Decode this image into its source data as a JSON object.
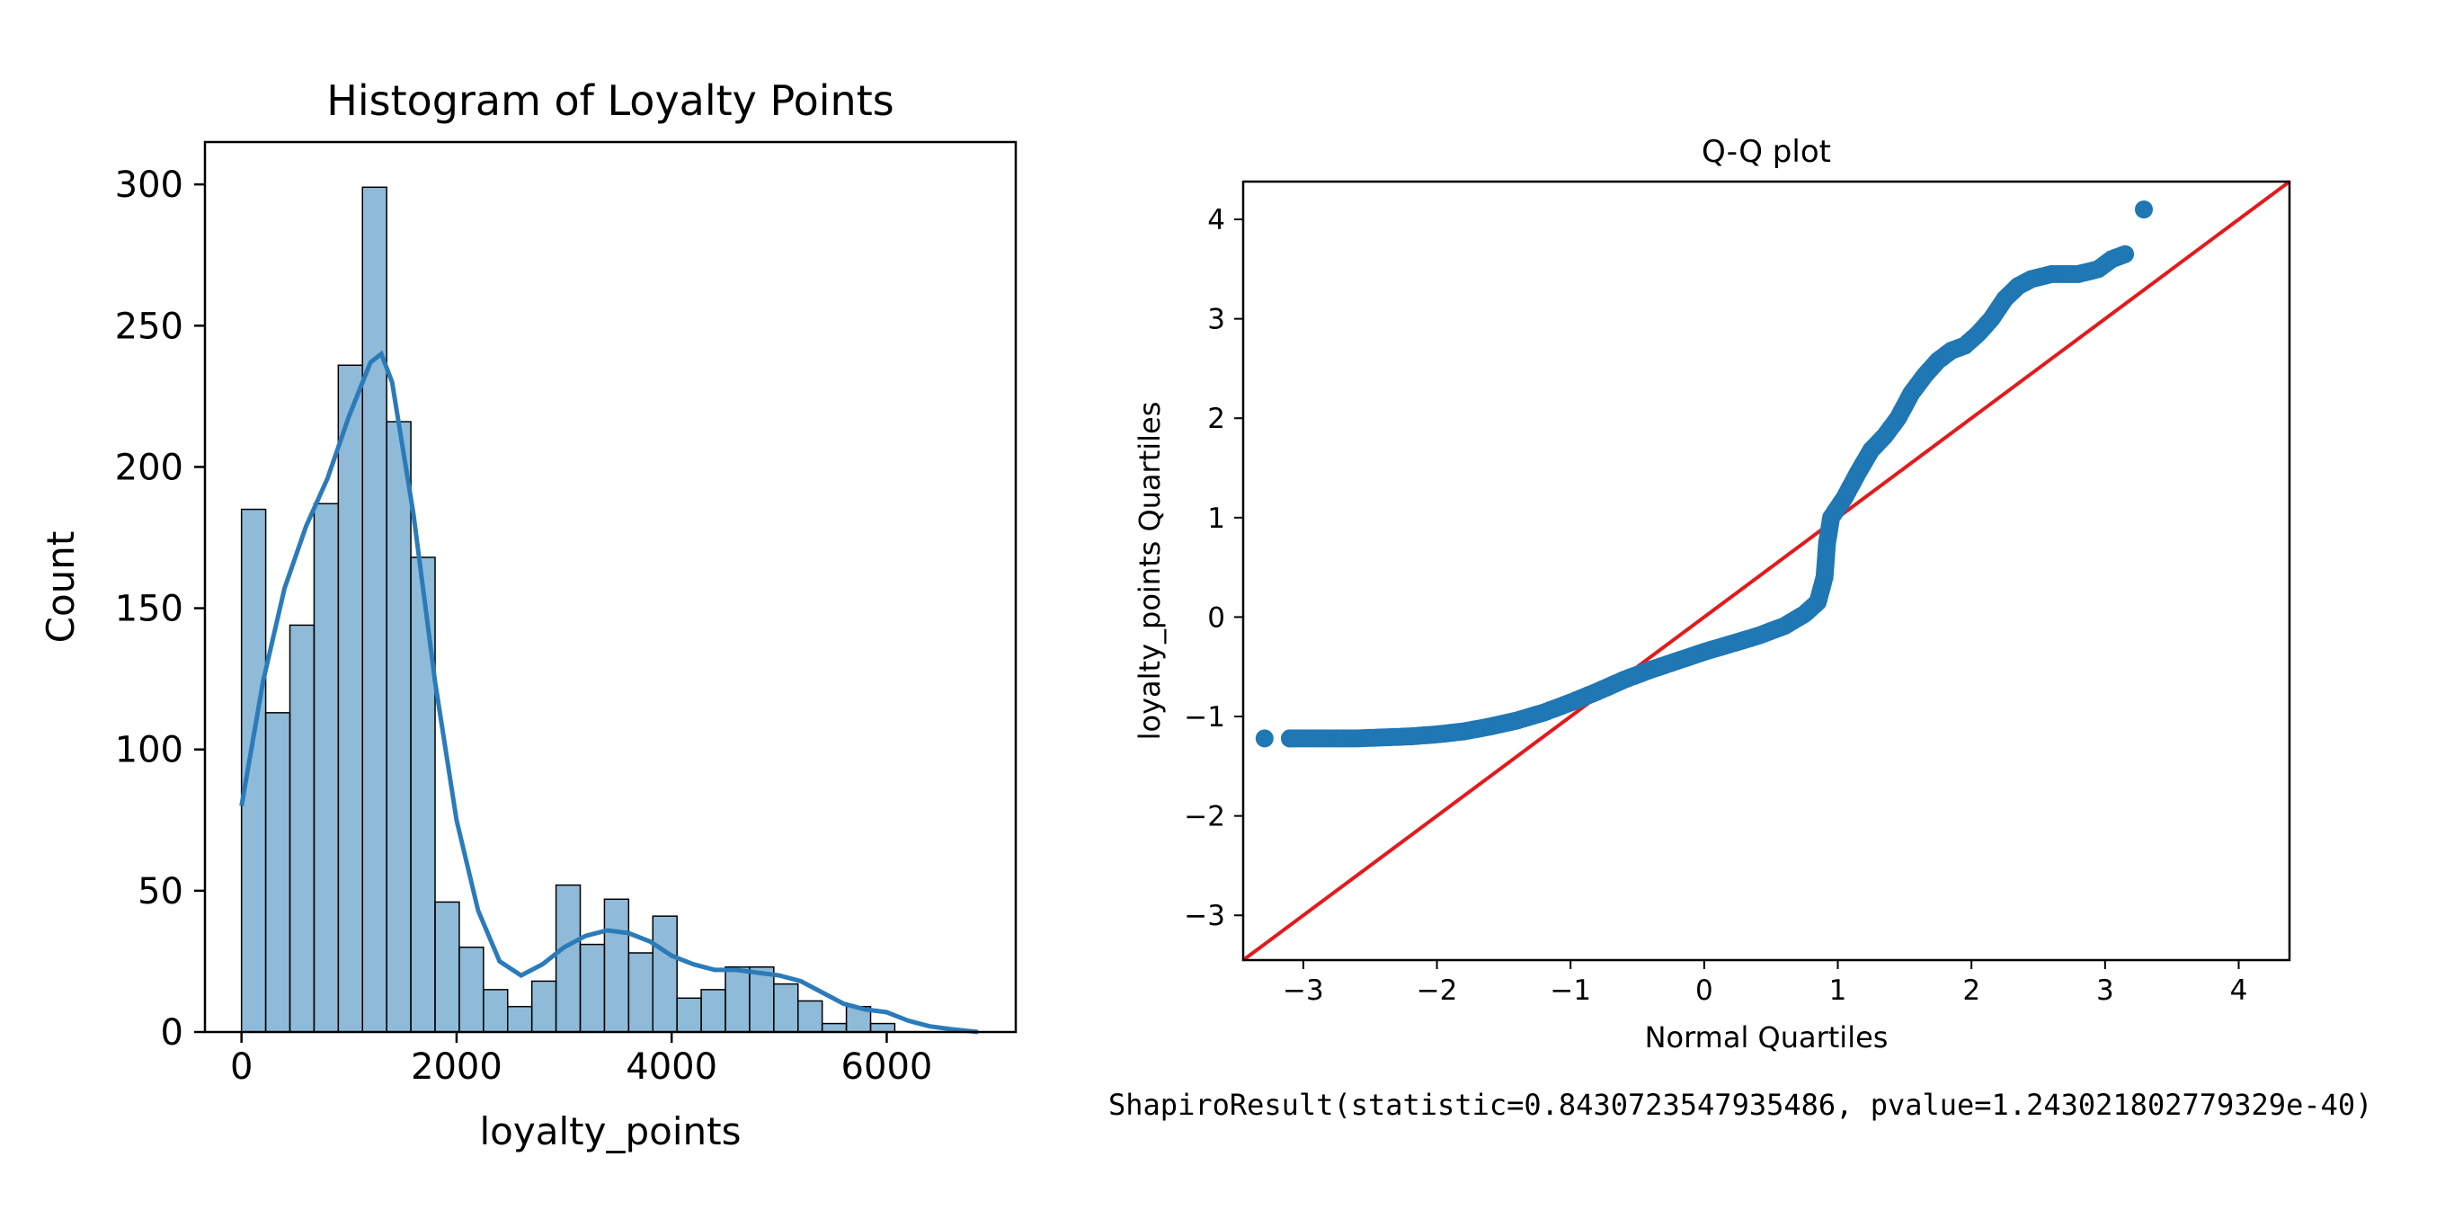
{
  "charts": {
    "histogram": {
      "title": "Histogram of Loyalty Points",
      "xlabel": "loyalty_points",
      "ylabel": "Count"
    },
    "qqplot": {
      "title": "Q-Q plot",
      "xlabel": "Normal Quartiles",
      "ylabel": "loyalty_points Quartiles"
    }
  },
  "chart_data": [
    {
      "type": "bar",
      "title": "Histogram of Loyalty Points",
      "xlabel": "loyalty_points",
      "ylabel": "Count",
      "bin_start": 0,
      "bin_width": 225,
      "values": [
        185,
        113,
        144,
        187,
        236,
        299,
        216,
        168,
        46,
        30,
        15,
        9,
        18,
        52,
        31,
        47,
        28,
        41,
        12,
        15,
        23,
        23,
        17,
        11,
        3,
        9,
        3,
        0,
        0,
        0
      ],
      "kde_x": [
        0,
        200,
        400,
        600,
        800,
        1000,
        1200,
        1300,
        1400,
        1600,
        1800,
        2000,
        2200,
        2400,
        2600,
        2800,
        3000,
        3200,
        3400,
        3600,
        3800,
        4000,
        4200,
        4400,
        4600,
        4800,
        5000,
        5200,
        5400,
        5600,
        5800,
        6000,
        6200,
        6400,
        6600,
        6850
      ],
      "kde_y": [
        80,
        124,
        157,
        179,
        196,
        218,
        237,
        240,
        230,
        183,
        124,
        75,
        43,
        25,
        20,
        24,
        30,
        34,
        36,
        35,
        32,
        27,
        24,
        22,
        22,
        21,
        20,
        18,
        14,
        10,
        8,
        7,
        4,
        2,
        1,
        0
      ],
      "xticks": [
        0,
        2000,
        4000,
        6000
      ],
      "yticks": [
        0,
        50,
        100,
        150,
        200,
        250,
        300
      ],
      "xlim": [
        -340,
        7200
      ],
      "ylim": [
        0,
        315
      ],
      "bar_color": "#1f77b4",
      "kde_color": "#2b7bba"
    },
    {
      "type": "scatter",
      "title": "Q-Q plot",
      "xlabel": "Normal Quartiles",
      "ylabel": "loyalty_points Quartiles",
      "xticks": [
        -3,
        -2,
        -1,
        0,
        1,
        2,
        3,
        4
      ],
      "yticks": [
        -3,
        -2,
        -1,
        0,
        1,
        2,
        3,
        4
      ],
      "xlim": [
        -3.45,
        4.38
      ],
      "ylim": [
        -3.45,
        4.38
      ],
      "reference_line": [
        [
          -3.45,
          -3.45
        ],
        [
          4.38,
          4.38
        ]
      ],
      "quantile_curve": [
        [
          -3.29,
          -1.22
        ],
        [
          -3.1,
          -1.22
        ],
        [
          -2.95,
          -1.22
        ],
        [
          -2.8,
          -1.22
        ],
        [
          -2.6,
          -1.22
        ],
        [
          -2.4,
          -1.21
        ],
        [
          -2.2,
          -1.2
        ],
        [
          -2.0,
          -1.18
        ],
        [
          -1.8,
          -1.15
        ],
        [
          -1.6,
          -1.1
        ],
        [
          -1.4,
          -1.04
        ],
        [
          -1.2,
          -0.96
        ],
        [
          -1.0,
          -0.86
        ],
        [
          -0.8,
          -0.75
        ],
        [
          -0.6,
          -0.63
        ],
        [
          -0.4,
          -0.53
        ],
        [
          -0.2,
          -0.44
        ],
        [
          0.0,
          -0.35
        ],
        [
          0.2,
          -0.27
        ],
        [
          0.4,
          -0.19
        ],
        [
          0.6,
          -0.09
        ],
        [
          0.75,
          0.03
        ],
        [
          0.85,
          0.15
        ],
        [
          0.9,
          0.4
        ],
        [
          0.92,
          0.75
        ],
        [
          0.95,
          1.0
        ],
        [
          1.05,
          1.2
        ],
        [
          1.15,
          1.45
        ],
        [
          1.25,
          1.68
        ],
        [
          1.35,
          1.82
        ],
        [
          1.45,
          2.0
        ],
        [
          1.55,
          2.25
        ],
        [
          1.65,
          2.43
        ],
        [
          1.75,
          2.58
        ],
        [
          1.85,
          2.68
        ],
        [
          1.95,
          2.73
        ],
        [
          2.05,
          2.85
        ],
        [
          2.15,
          3.0
        ],
        [
          2.25,
          3.2
        ],
        [
          2.35,
          3.33
        ],
        [
          2.45,
          3.4
        ],
        [
          2.6,
          3.45
        ],
        [
          2.8,
          3.45
        ],
        [
          2.95,
          3.5
        ],
        [
          3.05,
          3.6
        ],
        [
          3.15,
          3.65
        ],
        [
          3.29,
          4.1
        ]
      ],
      "point_color": "#1f77b4",
      "line_color": "#e31a1c"
    }
  ],
  "output": {
    "shapiro_text": "ShapiroResult(statistic=0.8430723547935486, pvalue=1.243021802779329e-40)"
  }
}
